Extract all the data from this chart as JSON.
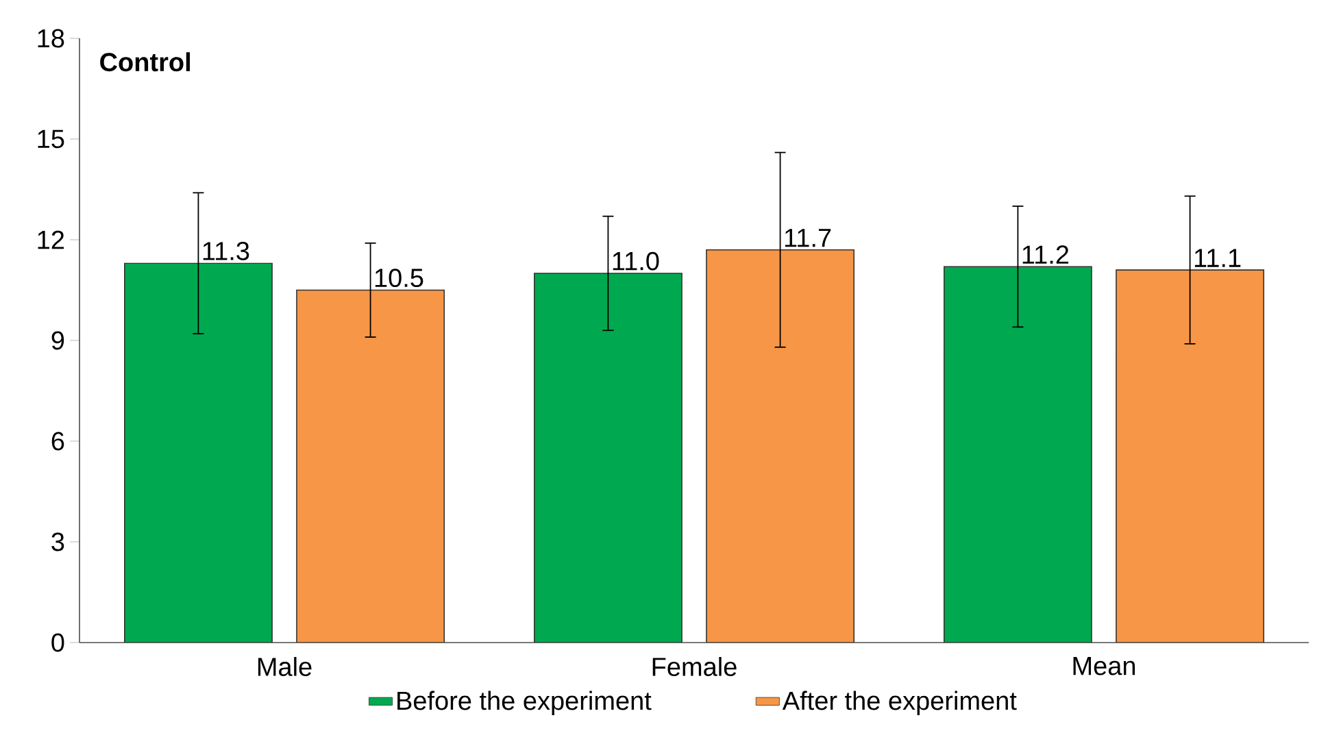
{
  "chart_data": {
    "type": "bar",
    "title": "Control",
    "categories": [
      "Male",
      "Female",
      "Mean"
    ],
    "series": [
      {
        "name": "Before the experiment",
        "color": "#00a94f",
        "values": [
          11.3,
          11.0,
          11.2
        ],
        "errors": [
          2.1,
          1.7,
          1.8
        ],
        "value_labels": [
          "11.3",
          "11.0",
          "11.2"
        ]
      },
      {
        "name": "After the experiment",
        "color": "#f79646",
        "values": [
          10.5,
          11.7,
          11.1
        ],
        "errors": [
          1.4,
          2.9,
          2.2
        ],
        "value_labels": [
          "10.5",
          "11.7",
          "11.1"
        ]
      }
    ],
    "ylim": [
      0,
      18
    ],
    "yticks": [
      0,
      3,
      6,
      9,
      12,
      15,
      18
    ],
    "legend": "bottom"
  }
}
